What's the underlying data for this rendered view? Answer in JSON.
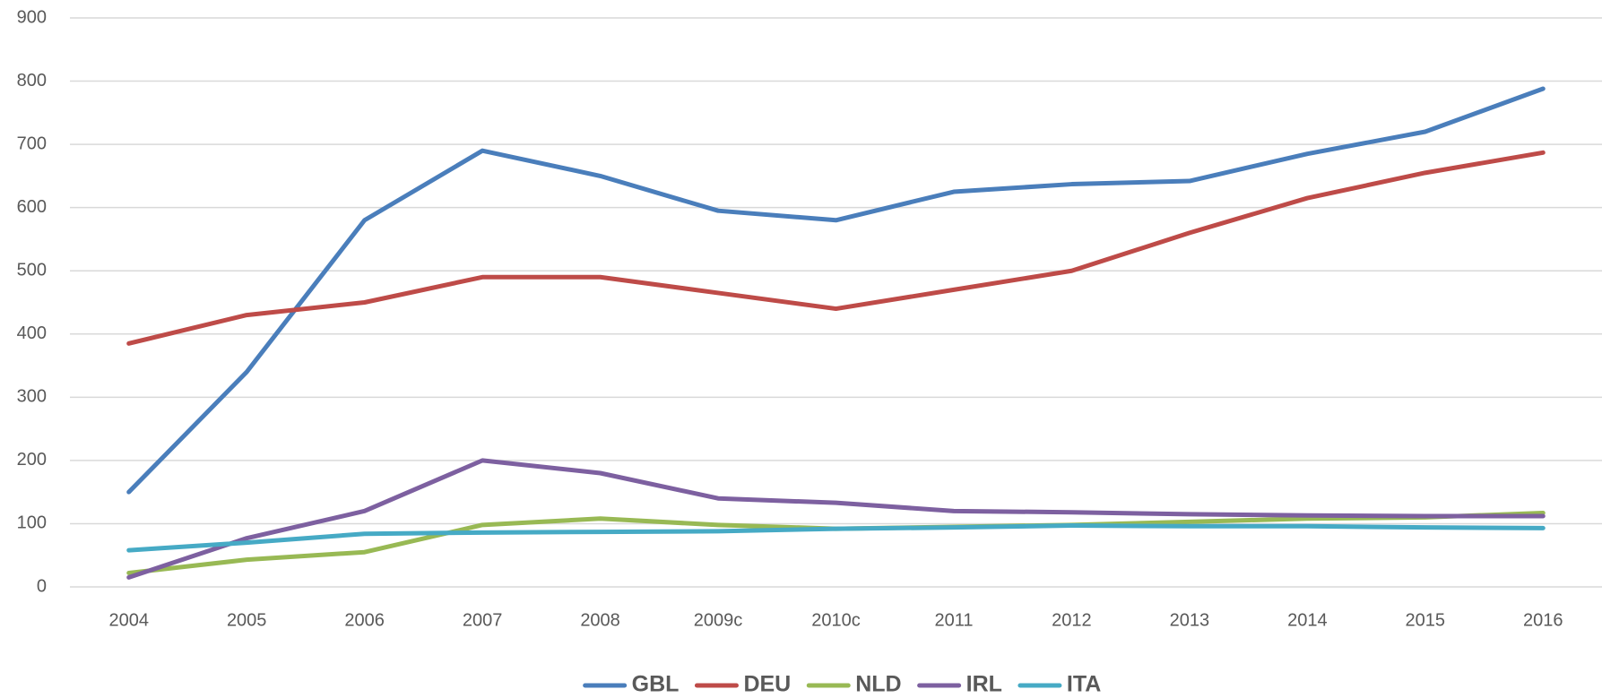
{
  "chart_data": {
    "type": "line",
    "categories": [
      "2004",
      "2005",
      "2006",
      "2007",
      "2008",
      "2009c",
      "2010c",
      "2011",
      "2012",
      "2013",
      "2014",
      "2015",
      "2016"
    ],
    "series": [
      {
        "name": "GBL",
        "color": "#4a7ebb",
        "values": [
          150,
          340,
          580,
          690,
          650,
          595,
          580,
          625,
          637,
          642,
          685,
          720,
          788
        ]
      },
      {
        "name": "DEU",
        "color": "#be4b48",
        "values": [
          385,
          430,
          450,
          490,
          490,
          465,
          440,
          470,
          500,
          560,
          615,
          655,
          687
        ]
      },
      {
        "name": "NLD",
        "color": "#98b954",
        "values": [
          22,
          43,
          55,
          98,
          108,
          98,
          92,
          95,
          98,
          103,
          108,
          110,
          117
        ]
      },
      {
        "name": "IRL",
        "color": "#7d60a0",
        "values": [
          15,
          77,
          120,
          200,
          180,
          140,
          133,
          120,
          118,
          115,
          113,
          112,
          112
        ]
      },
      {
        "name": "ITA",
        "color": "#46aac5",
        "values": [
          58,
          70,
          84,
          86,
          87,
          88,
          92,
          94,
          97,
          96,
          96,
          94,
          93
        ]
      }
    ],
    "ylim": [
      0,
      900
    ],
    "yticks": [
      0,
      100,
      200,
      300,
      400,
      500,
      600,
      700,
      800,
      900
    ],
    "grid": true,
    "legend": "bottom"
  }
}
